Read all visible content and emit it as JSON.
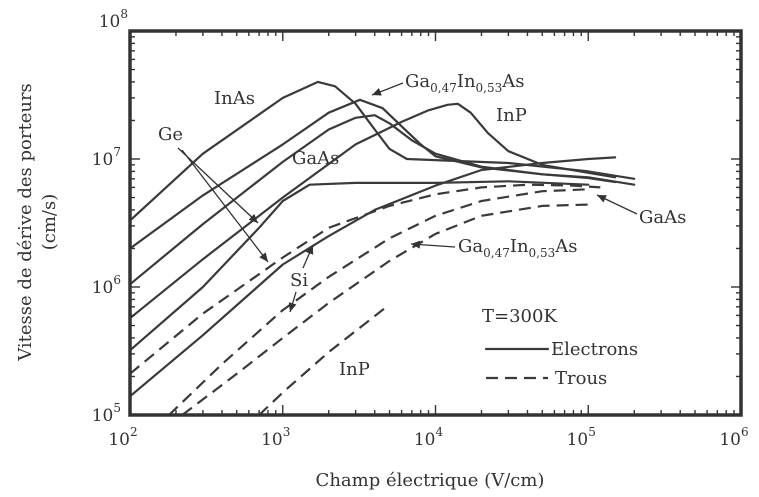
{
  "chart_data": {
    "type": "line",
    "xscale": "log",
    "yscale": "log",
    "xlim": [
      100,
      1000000
    ],
    "ylim": [
      100000,
      100000000
    ],
    "xlabel": "Champ électrique (V/cm)",
    "ylabel_line1": "Vitesse de dérive des porteurs",
    "ylabel_line2": "(cm/s)",
    "x_ticks": [
      {
        "base": "10",
        "exp": "2",
        "value": 100
      },
      {
        "base": "10",
        "exp": "3",
        "value": 1000
      },
      {
        "base": "10",
        "exp": "4",
        "value": 10000
      },
      {
        "base": "10",
        "exp": "5",
        "value": 100000
      },
      {
        "base": "10",
        "exp": "6",
        "value": 1000000
      }
    ],
    "y_ticks": [
      {
        "base": "10",
        "exp": "5",
        "value": 100000
      },
      {
        "base": "10",
        "exp": "6",
        "value": 1000000
      },
      {
        "base": "10",
        "exp": "7",
        "value": 10000000
      },
      {
        "base": "10",
        "exp": "8",
        "value": 100000000
      }
    ],
    "series": [
      {
        "style": "solid",
        "x": [
          100,
          300,
          1000,
          1700,
          2200,
          3000,
          4000,
          5000,
          6500,
          10000,
          30000,
          100000,
          200000
        ],
        "y": [
          3300000,
          11000000,
          30000000,
          40000000,
          37000000,
          27000000,
          17000000,
          12000000,
          10000000,
          9800000,
          9300000,
          8000000,
          7000000
        ]
      },
      {
        "style": "solid",
        "x": [
          100,
          300,
          1000,
          2000,
          3200,
          4500,
          6000,
          8000,
          10000,
          20000,
          50000,
          100000,
          200000
        ],
        "y": [
          2000000,
          5200000,
          13000000,
          23000000,
          29000000,
          25000000,
          18000000,
          13000000,
          10500000,
          8600000,
          7600000,
          7200000,
          6300000
        ]
      },
      {
        "style": "solid",
        "x": [
          100,
          300,
          1000,
          2000,
          3000,
          4000,
          5000,
          7000,
          10000,
          20000,
          50000,
          100000,
          150000
        ],
        "y": [
          1050000,
          3100000,
          9500000,
          17000000,
          21000000,
          22000000,
          19000000,
          14000000,
          11000000,
          8700000,
          7600000,
          7100000,
          6600000
        ]
      },
      {
        "style": "solid",
        "x": [
          100,
          300,
          1000,
          3000,
          6000,
          9000,
          12000,
          14000,
          17000,
          22000,
          30000,
          50000,
          100000,
          150000
        ],
        "y": [
          570000,
          1650000,
          5000000,
          13000000,
          19500000,
          24000000,
          26500000,
          27000000,
          23000000,
          16000000,
          11500000,
          9000000,
          7800000,
          7200000
        ]
      },
      {
        "style": "solid",
        "x": [
          100,
          300,
          700,
          1000,
          1500,
          3000,
          10000,
          30000,
          100000
        ],
        "y": [
          320000,
          1000000,
          2900000,
          4700000,
          6300000,
          6500000,
          6500000,
          6700000,
          6300000
        ]
      },
      {
        "style": "solid",
        "x": [
          100,
          300,
          1000,
          2000,
          4000,
          10000,
          20000,
          50000,
          100000,
          150000
        ],
        "y": [
          140000,
          420000,
          1500000,
          2500000,
          4000000,
          6200000,
          8200000,
          9300000,
          10000000,
          10300000
        ]
      },
      {
        "style": "dashed",
        "x": [
          100,
          300,
          1000,
          2000,
          5000,
          10000,
          20000,
          40000,
          80000,
          120000
        ],
        "y": [
          210000,
          620000,
          1700000,
          2900000,
          4300000,
          5300000,
          6000000,
          6300000,
          6200000,
          6000000
        ]
      },
      {
        "style": "dashed",
        "x": [
          180,
          400,
          1000,
          2000,
          5000,
          10000,
          20000,
          50000,
          100000
        ],
        "y": [
          100000,
          250000,
          660000,
          1200000,
          2400000,
          3600000,
          4700000,
          5600000,
          5800000
        ]
      },
      {
        "style": "dashed",
        "x": [
          220,
          500,
          1000,
          2000,
          5000,
          10000,
          20000,
          50000,
          100000
        ],
        "y": [
          100000,
          210000,
          400000,
          750000,
          1600000,
          2600000,
          3600000,
          4300000,
          4400000
        ]
      },
      {
        "style": "dashed",
        "x": [
          700,
          1000,
          2000,
          5000
        ],
        "y": [
          100000,
          150000,
          310000,
          730000
        ]
      }
    ],
    "annotations": [
      {
        "text": "InAs"
      },
      {
        "text": "InP"
      },
      {
        "text": "GaAs"
      },
      {
        "text": "Ge"
      },
      {
        "text": "Si"
      },
      {
        "text": "InP"
      },
      {
        "text": "GaAs"
      }
    ],
    "gainas_labels": [
      {
        "a": "Ga",
        "a_sub": "0,47",
        "b": "In",
        "b_sub": "0,53",
        "c": "As"
      },
      {
        "a": "Ga",
        "a_sub": "0,47",
        "b": "In",
        "b_sub": "0,53",
        "c": "As"
      }
    ],
    "legend": {
      "placement": "bottom-right",
      "title": "T=300K",
      "entries": [
        {
          "label": "Electrons",
          "style": "solid"
        },
        {
          "label": "Trous",
          "style": "dashed"
        }
      ]
    }
  }
}
